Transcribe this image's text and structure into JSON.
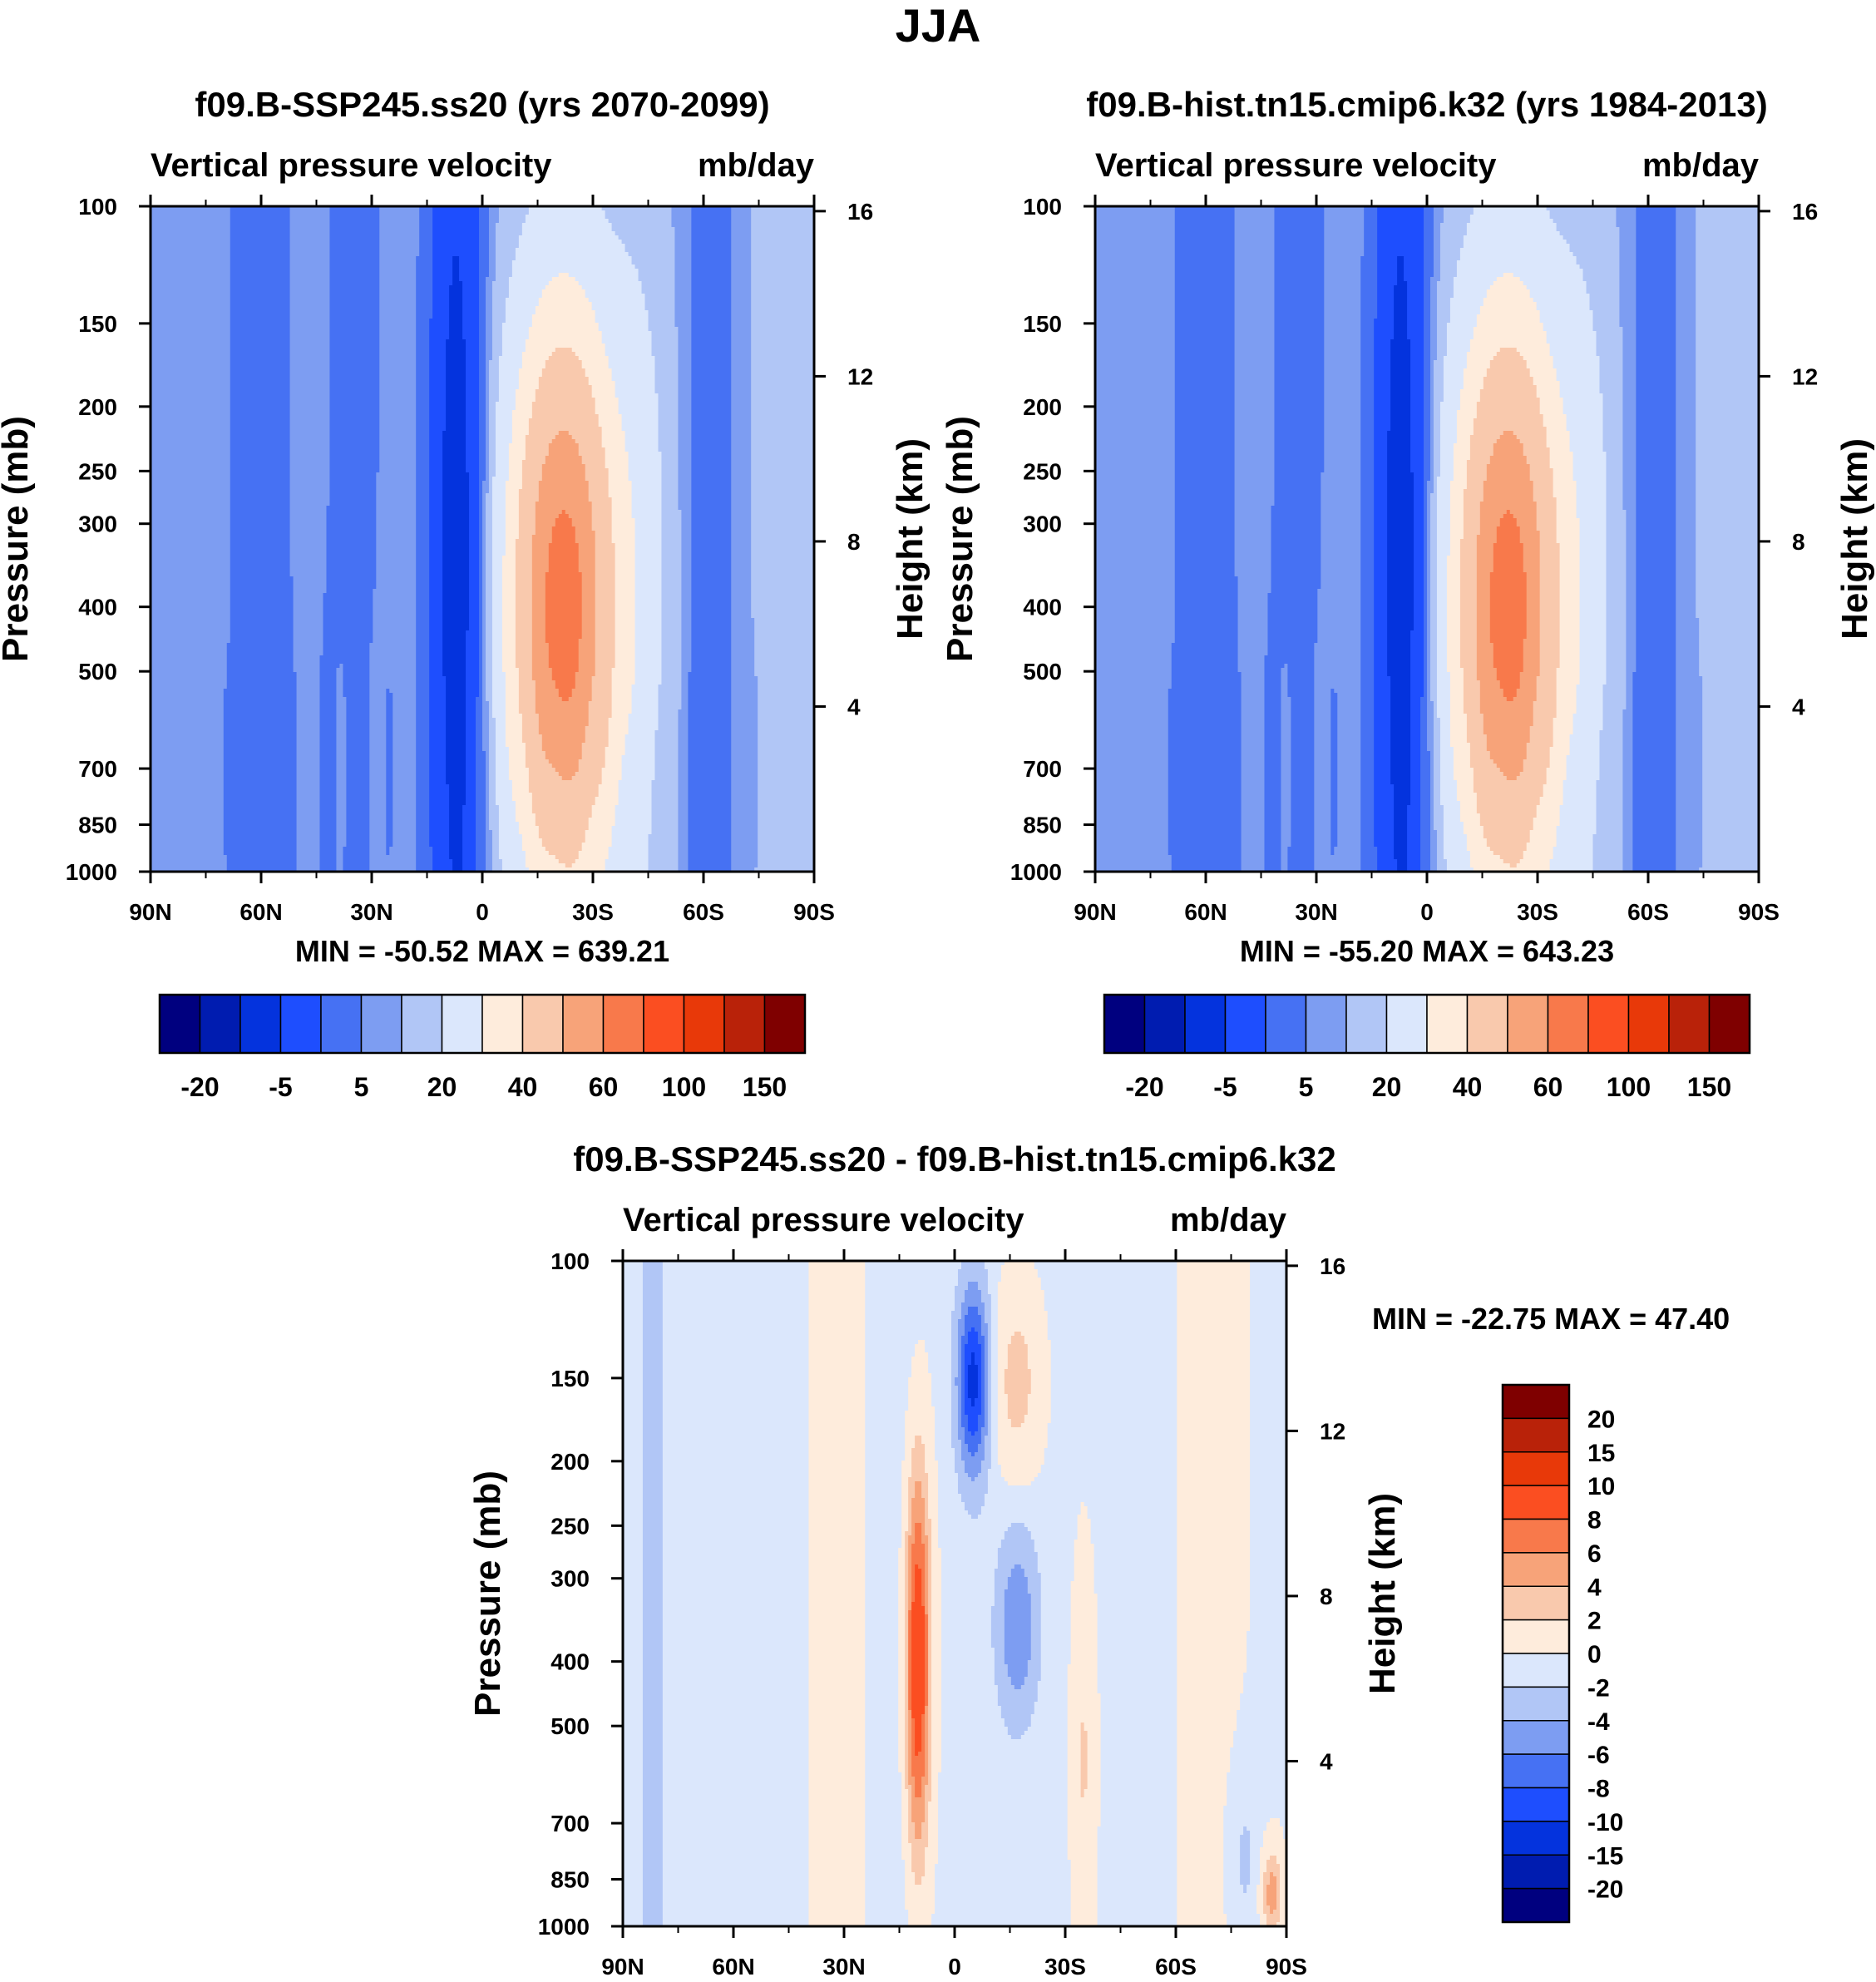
{
  "figure": {
    "title": "JJA"
  },
  "palette": {
    "base": [
      "#00007f",
      "#001cb0",
      "#0433dd",
      "#1e4efe",
      "#4671f3",
      "#7d9df2",
      "#b1c6f6",
      "#dbe7fc",
      "#feecdc",
      "#f9c9ad",
      "#f7a379",
      "#f8794b",
      "#fb4e21",
      "#e83909",
      "#b92209",
      "#7f0000"
    ],
    "diff": [
      "#00007f",
      "#001cb0",
      "#0433dd",
      "#1e4efe",
      "#4671f3",
      "#7d9df2",
      "#b1c6f6",
      "#dbe7fc",
      "#feecdc",
      "#f9c9ad",
      "#f7a379",
      "#f8794b",
      "#fb4e21",
      "#e83909",
      "#b92209",
      "#7f0000"
    ],
    "frame": "#000000"
  },
  "chart_data": [
    {
      "type": "heatmap",
      "id": "p1",
      "title": "f09.B-SSP245.ss20 (yrs 2070-2099)",
      "left_label": "Vertical pressure velocity",
      "right_label": "mb/day",
      "ylabel": "Pressure (mb)",
      "y2label": "Height (km)",
      "x_ticks": [
        "90N",
        "60N",
        "30N",
        "0",
        "30S",
        "60S",
        "90S"
      ],
      "x_values": [
        90,
        60,
        30,
        0,
        -30,
        -60,
        -90
      ],
      "xlim": [
        90,
        -90
      ],
      "y_ticks": [
        100,
        150,
        200,
        250,
        300,
        400,
        500,
        700,
        850,
        1000
      ],
      "ylim": [
        100,
        1000
      ],
      "y2_ticks": [
        16,
        12,
        8,
        4
      ],
      "minmax": "MIN = -50.52  MAX = 639.21",
      "colorbar": {
        "orientation": "horizontal",
        "labels": [
          "-20",
          "-5",
          "5",
          "20",
          "40",
          "60",
          "100",
          "150"
        ],
        "levels": [
          -30,
          -20,
          -10,
          -5,
          0,
          5,
          10,
          20,
          30,
          40,
          50,
          60,
          80,
          100,
          120,
          150
        ]
      }
    },
    {
      "type": "heatmap",
      "id": "p2",
      "title": "f09.B-hist.tn15.cmip6.k32 (yrs 1984-2013)",
      "left_label": "Vertical pressure velocity",
      "right_label": "mb/day",
      "ylabel": "Pressure (mb)",
      "y2label": "Height (km)",
      "x_ticks": [
        "90N",
        "60N",
        "30N",
        "0",
        "30S",
        "60S",
        "90S"
      ],
      "x_values": [
        90,
        60,
        30,
        0,
        -30,
        -60,
        -90
      ],
      "xlim": [
        90,
        -90
      ],
      "y_ticks": [
        100,
        150,
        200,
        250,
        300,
        400,
        500,
        700,
        850,
        1000
      ],
      "ylim": [
        100,
        1000
      ],
      "y2_ticks": [
        16,
        12,
        8,
        4
      ],
      "minmax": "MIN = -55.20  MAX = 643.23",
      "colorbar": {
        "orientation": "horizontal",
        "labels": [
          "-20",
          "-5",
          "5",
          "20",
          "40",
          "60",
          "100",
          "150"
        ],
        "levels": [
          -30,
          -20,
          -10,
          -5,
          0,
          5,
          10,
          20,
          30,
          40,
          50,
          60,
          80,
          100,
          120,
          150
        ]
      }
    },
    {
      "type": "heatmap",
      "id": "p3",
      "title": "f09.B-SSP245.ss20 - f09.B-hist.tn15.cmip6.k32",
      "left_label": "Vertical pressure velocity",
      "right_label": "mb/day",
      "ylabel": "Pressure (mb)",
      "y2label": "Height (km)",
      "x_ticks": [
        "90N",
        "60N",
        "30N",
        "0",
        "30S",
        "60S",
        "90S"
      ],
      "x_values": [
        90,
        60,
        30,
        0,
        -30,
        -60,
        -90
      ],
      "xlim": [
        90,
        -90
      ],
      "y_ticks": [
        100,
        150,
        200,
        250,
        300,
        400,
        500,
        700,
        850,
        1000
      ],
      "ylim": [
        100,
        1000
      ],
      "y2_ticks": [
        16,
        12,
        8,
        4
      ],
      "minmax": "MIN = -22.75  MAX =  47.40",
      "colorbar": {
        "orientation": "vertical",
        "labels": [
          "20",
          "15",
          "10",
          "8",
          "6",
          "4",
          "2",
          "0",
          "-2",
          "-4",
          "-6",
          "-8",
          "-10",
          "-15",
          "-20"
        ],
        "levels": [
          -20,
          -15,
          -10,
          -8,
          -6,
          -4,
          -2,
          0,
          2,
          4,
          6,
          8,
          10,
          15,
          20
        ]
      }
    }
  ]
}
